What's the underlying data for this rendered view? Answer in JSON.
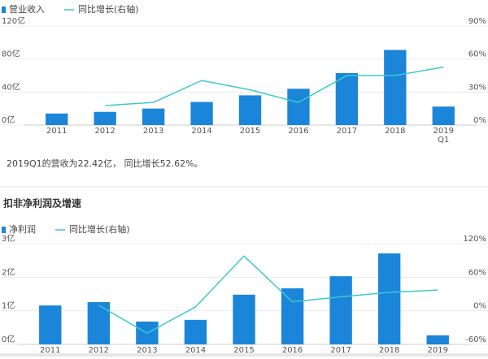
{
  "chart_data": [
    {
      "type": "bar-line",
      "categories": [
        "2011",
        "2012",
        "2013",
        "2014",
        "2015",
        "2016",
        "2017",
        "2018",
        "2019\nQ1"
      ],
      "series": [
        {
          "name": "营业收入",
          "type": "bar",
          "color": "#1b86d9",
          "values": [
            14,
            16,
            20,
            28,
            36,
            44,
            63,
            91,
            22.42
          ]
        },
        {
          "name": "同比增长(右轴)",
          "type": "line",
          "axis": "y2",
          "color": "#3ec9cc",
          "values": [
            null,
            17.7,
            20.6,
            40.5,
            32,
            20.6,
            45,
            45,
            52.62
          ]
        }
      ],
      "ylim": [
        0,
        120
      ],
      "yticks": [
        {
          "value": 0,
          "label": "0亿"
        },
        {
          "value": 40,
          "label": "40亿"
        },
        {
          "value": 80,
          "label": "80亿"
        },
        {
          "value": 120,
          "label": "120亿"
        }
      ],
      "y2lim": [
        0,
        90
      ],
      "y2ticks": [
        {
          "value": 0,
          "label": "0%"
        },
        {
          "value": 30,
          "label": "30%"
        },
        {
          "value": 60,
          "label": "60%"
        },
        {
          "value": 90,
          "label": "90%"
        }
      ],
      "grid": true
    },
    {
      "type": "bar-line",
      "categories": [
        "2011",
        "2012",
        "2013",
        "2014",
        "2015",
        "2016",
        "2017",
        "2018",
        "2019"
      ],
      "series": [
        {
          "name": "净利润",
          "type": "bar",
          "color": "#1b86d9",
          "values": [
            1.16,
            1.26,
            0.68,
            0.73,
            1.48,
            1.67,
            2.03,
            2.71,
            0.27
          ]
        },
        {
          "name": "同比增长(右轴)",
          "type": "line",
          "axis": "y2",
          "color": "#3ec9cc",
          "values": [
            null,
            10,
            -40,
            7,
            98,
            16,
            25,
            33,
            37
          ]
        }
      ],
      "ylim": [
        0,
        3
      ],
      "yticks": [
        {
          "value": 0,
          "label": "0亿"
        },
        {
          "value": 1,
          "label": "1亿"
        },
        {
          "value": 2,
          "label": "2亿"
        },
        {
          "value": 3,
          "label": "3亿"
        }
      ],
      "y2lim": [
        -60,
        120
      ],
      "y2ticks": [
        {
          "value": -60,
          "label": "-60%"
        },
        {
          "value": 0,
          "label": "0%"
        },
        {
          "value": 60,
          "label": "60%"
        },
        {
          "value": 120,
          "label": "120%"
        }
      ],
      "grid": true
    }
  ],
  "note": "2019Q1的营收为22.42亿， 同比增长52.62%。",
  "section_title": "扣非净利润及增速"
}
